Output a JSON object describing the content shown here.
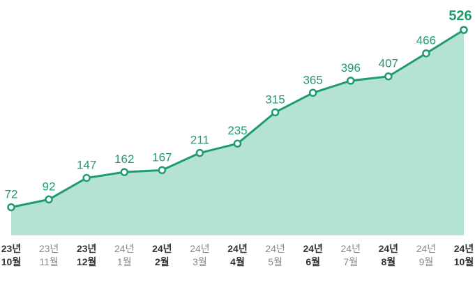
{
  "chart_data": {
    "type": "area",
    "title": "",
    "xlabel": "",
    "ylabel": "",
    "ylim": [
      0,
      530
    ],
    "grid": "vertical",
    "legend": "none",
    "categories": [
      {
        "year": "23년",
        "month": "10월",
        "bold": true
      },
      {
        "year": "23년",
        "month": "11월",
        "bold": false
      },
      {
        "year": "23년",
        "month": "12월",
        "bold": true
      },
      {
        "year": "24년",
        "month": "1월",
        "bold": false
      },
      {
        "year": "24년",
        "month": "2월",
        "bold": true
      },
      {
        "year": "24년",
        "month": "3월",
        "bold": false
      },
      {
        "year": "24년",
        "month": "4월",
        "bold": true
      },
      {
        "year": "24년",
        "month": "5월",
        "bold": false
      },
      {
        "year": "24년",
        "month": "6월",
        "bold": true
      },
      {
        "year": "24년",
        "month": "7월",
        "bold": false
      },
      {
        "year": "24년",
        "month": "8월",
        "bold": true
      },
      {
        "year": "24년",
        "month": "9월",
        "bold": false
      },
      {
        "year": "24년",
        "month": "10월",
        "bold": true
      }
    ],
    "values": [
      72,
      92,
      147,
      162,
      167,
      211,
      235,
      315,
      365,
      396,
      407,
      466,
      526
    ],
    "value_labels": [
      "72",
      "92",
      "147",
      "162",
      "167",
      "211",
      "235",
      "315",
      "365",
      "396",
      "407",
      "466",
      "526"
    ],
    "colors": {
      "line": "#1f9c6c",
      "fill": "#b4e3d4",
      "marker_fill": "#ffffff",
      "grid": "#cfcfcf",
      "label": "#1f9c6c"
    }
  }
}
